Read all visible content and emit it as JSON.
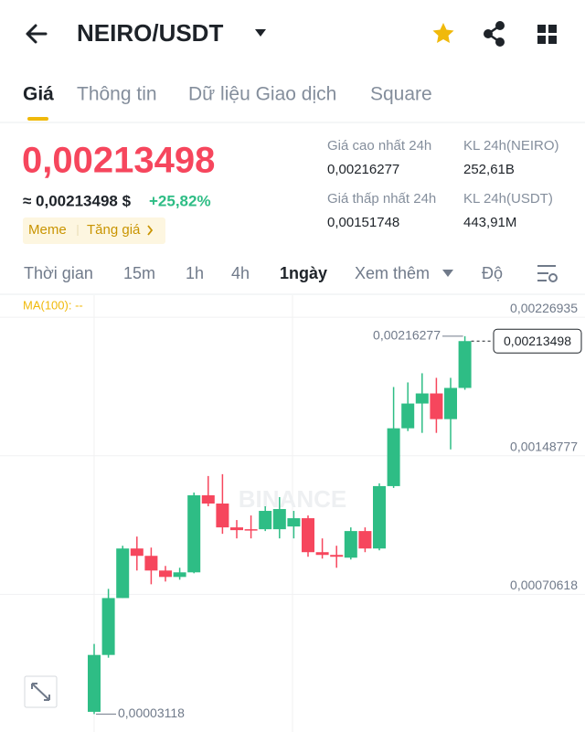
{
  "header": {
    "pair": "NEIRO/USDT"
  },
  "tabs": [
    "Giá",
    "Thông tin",
    "Dữ liệu Giao dịch",
    "Square"
  ],
  "ticker": {
    "price": "0,00213498",
    "approx": "≈ 0,00213498 $",
    "change": "+25,82%",
    "tags": [
      "Meme",
      "Tăng giá"
    ]
  },
  "stats": [
    {
      "label": "Giá cao nhất 24h",
      "value": "0,00216277"
    },
    {
      "label": "KL 24h(NEIRO)",
      "value": "252,61B"
    },
    {
      "label": "Giá thấp nhất 24h",
      "value": "0,00151748"
    },
    {
      "label": "KL 24h(USDT)",
      "value": "443,91M"
    }
  ],
  "intervals": [
    "Thời gian",
    "15m",
    "1h",
    "4h",
    "1ngày",
    "Xem thêm",
    "Độ"
  ],
  "chart_data": {
    "type": "candlestick",
    "indicator": "MA(100): --",
    "watermark": "BINANCE",
    "up_color": "#2ebd85",
    "down_color": "#f6465d",
    "ylim": [
      -6.5e-05,
      0.002394
    ],
    "yticks": [
      {
        "value": 0.00226935,
        "label": "0,00226935"
      },
      {
        "value": 0.00148777,
        "label": "0,00148777"
      },
      {
        "value": 0.00070618,
        "label": "0,00070618"
      }
    ],
    "high_marker": {
      "value": 0.00216277,
      "label": "0,00216277"
    },
    "low_marker": {
      "value": 3.118e-05,
      "label": "0,00003118"
    },
    "last_price": {
      "value": 0.00213498,
      "label": "0,00213498"
    },
    "candles": [
      {
        "open": 4.365e-05,
        "high": 0.00042665,
        "low": 3.118e-05,
        "close": 0.00036455
      },
      {
        "open": 0.00036455,
        "high": 0.00073725,
        "low": 0.00034905,
        "close": 0.00068545
      },
      {
        "open": 0.00068545,
        "high": 0.00098055,
        "low": 0.00068545,
        "close": 0.00096495
      },
      {
        "open": 0.00096495,
        "high": 0.0010323,
        "low": 0.00084075,
        "close": 0.00092355
      },
      {
        "open": 0.00092355,
        "high": 0.00097015,
        "low": 0.00076315,
        "close": 0.00084075
      },
      {
        "open": 0.00084075,
        "high": 0.00086665,
        "low": 0.00077865,
        "close": 0.00080455
      },
      {
        "open": 0.00080455,
        "high": 0.00085635,
        "low": 0.00078905,
        "close": 0.00083045
      },
      {
        "open": 0.00083045,
        "high": 0.0012807,
        "low": 0.00082525,
        "close": 0.0012652
      },
      {
        "open": 0.0012652,
        "high": 0.0013739,
        "low": 0.0012031,
        "close": 0.0012186
      },
      {
        "open": 0.0012186,
        "high": 0.0013843,
        "low": 0.0010478,
        "close": 0.0010841
      },
      {
        "open": 0.0010841,
        "high": 0.0011255,
        "low": 0.0010219,
        "close": 0.0010685
      },
      {
        "open": 0.0010737,
        "high": 0.0011513,
        "low": 0.0010219,
        "close": 0.0010685
      },
      {
        "open": 0.0010737,
        "high": 0.0012031,
        "low": 0.0010634,
        "close": 0.0011772
      },
      {
        "open": 0.0010737,
        "high": 0.0012549,
        "low": 0.0010219,
        "close": 0.0011876
      },
      {
        "open": 0.0010892,
        "high": 0.0011772,
        "low": 0.0010219,
        "close": 0.0011358
      },
      {
        "open": 0.0011358,
        "high": 0.0011513,
        "low": 0.00091845,
        "close": 0.00094425
      },
      {
        "open": 0.00094425,
        "high": 0.0010219,
        "low": 0.00090805,
        "close": 0.00092875
      },
      {
        "open": 0.00092875,
        "high": 0.00098055,
        "low": 0.00085635,
        "close": 0.00091845
      },
      {
        "open": 0.00091325,
        "high": 0.0010841,
        "low": 0.00090285,
        "close": 0.0010634
      },
      {
        "open": 0.0010634,
        "high": 0.0010841,
        "low": 0.00094425,
        "close": 0.00096495
      },
      {
        "open": 0.00096495,
        "high": 0.0013325,
        "low": 0.00095465,
        "close": 0.001317
      },
      {
        "open": 0.001317,
        "high": 0.001876,
        "low": 0.0013066,
        "close": 0.0016431
      },
      {
        "open": 0.0016431,
        "high": 0.0019019,
        "low": 0.0016275,
        "close": 0.0017828
      },
      {
        "open": 0.0017828,
        "high": 0.0019536,
        "low": 0.0016172,
        "close": 0.0018397
      },
      {
        "open": 0.0018397,
        "high": 0.0019277,
        "low": 0.0016172,
        "close": 0.0016948
      },
      {
        "open": 0.0016948,
        "high": 0.0019277,
        "low": 0.001524,
        "close": 0.0018708
      },
      {
        "open": 0.0018708,
        "high": 0.00216277,
        "low": 0.0018605,
        "close": 0.00213498
      }
    ]
  }
}
